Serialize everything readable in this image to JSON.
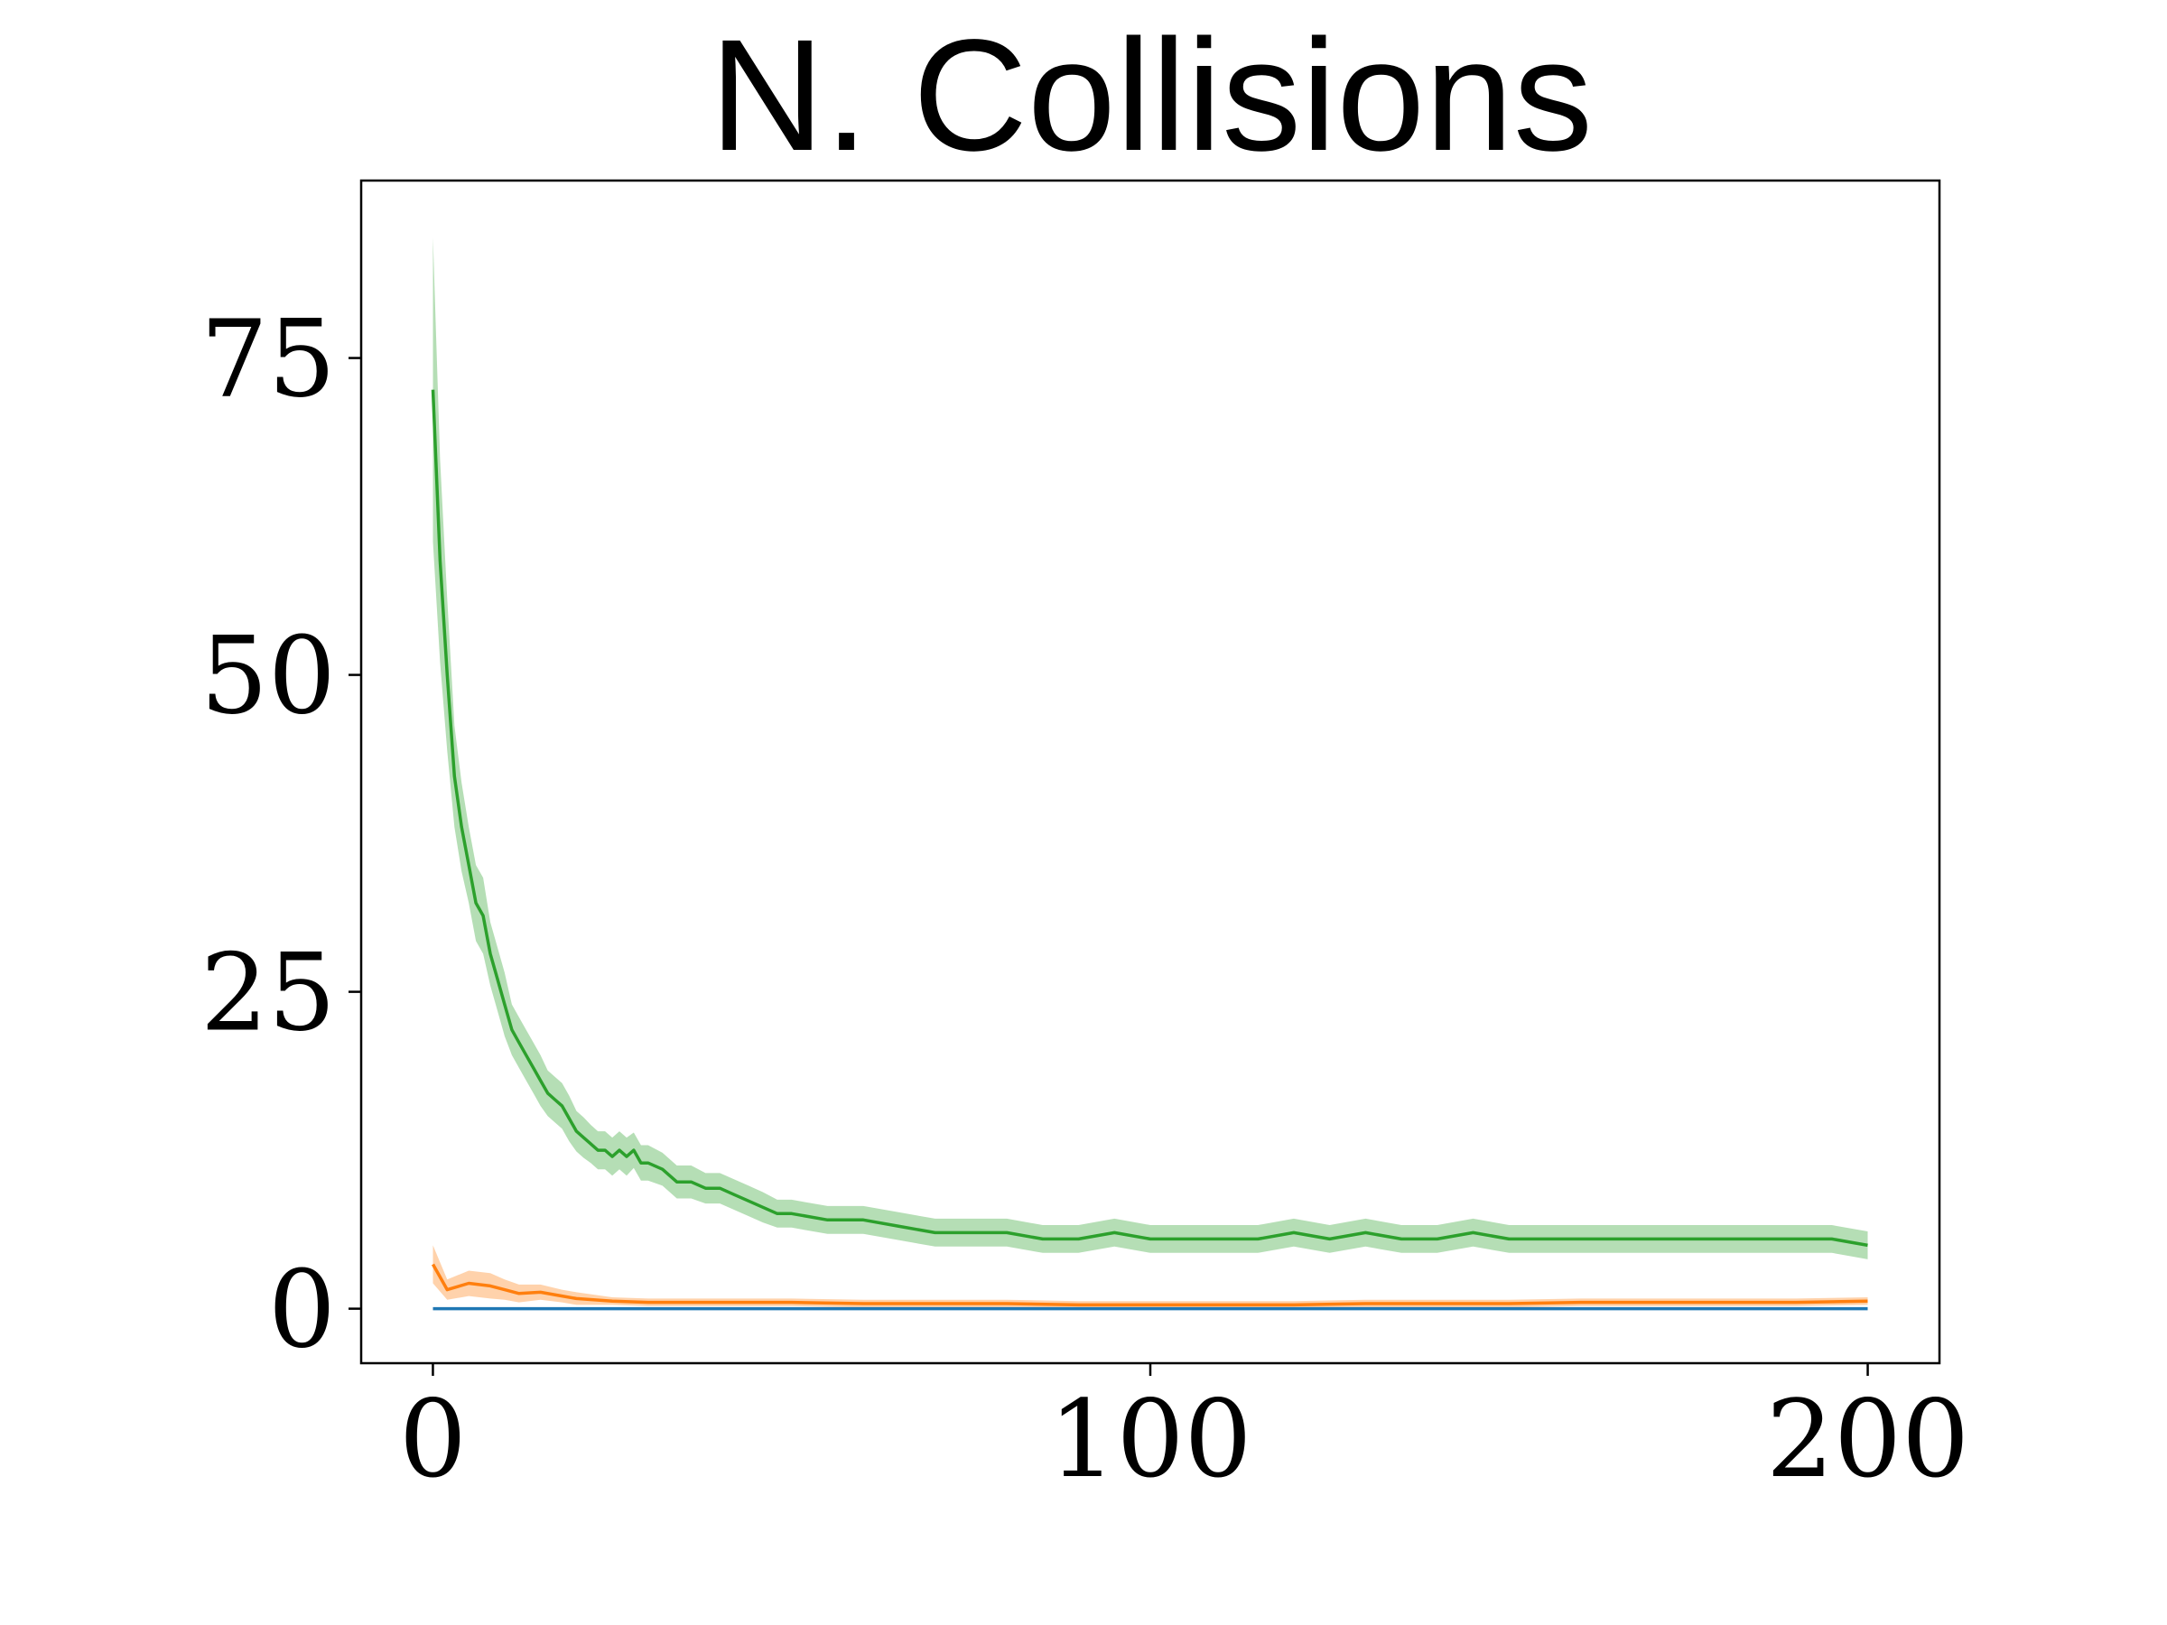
{
  "chart_data": {
    "type": "line",
    "title": "N. Collisions",
    "xlabel": "",
    "ylabel": "",
    "xlim": [
      -10,
      210
    ],
    "ylim": [
      -4.3,
      89
    ],
    "xticks": [
      0,
      100,
      200
    ],
    "xtick_labels": [
      "0",
      "100",
      "200"
    ],
    "yticks": [
      0,
      25,
      50,
      75
    ],
    "ytick_labels": [
      "0",
      "25",
      "50",
      "75"
    ],
    "grid": false,
    "legend": "none",
    "series": [
      {
        "color": "#2ca02c",
        "band": true,
        "x": [
          0,
          1,
          2,
          3,
          4,
          5,
          6,
          7,
          8,
          9,
          10,
          11,
          12,
          13,
          14,
          15,
          16,
          17,
          18,
          19,
          20,
          21,
          22,
          23,
          24,
          25,
          26,
          27,
          28,
          29,
          30,
          32,
          34,
          36,
          38,
          40,
          42,
          44,
          46,
          48,
          50,
          55,
          60,
          65,
          70,
          75,
          80,
          85,
          90,
          95,
          100,
          105,
          110,
          115,
          120,
          125,
          130,
          135,
          140,
          145,
          150,
          155,
          160,
          165,
          170,
          175,
          180,
          185,
          190,
          195,
          200
        ],
        "values": [
          72.5,
          59,
          50,
          42,
          38,
          35,
          32,
          31,
          28,
          26,
          24,
          22,
          21,
          20,
          19,
          18,
          17,
          16.5,
          16,
          15,
          14,
          13.5,
          13,
          12.5,
          12.5,
          12,
          12.5,
          12,
          12.5,
          11.5,
          11.5,
          11,
          10,
          10,
          9.5,
          9.5,
          9,
          8.5,
          8,
          7.5,
          7.5,
          7,
          7,
          6.5,
          6,
          6,
          6,
          5.5,
          5.5,
          6,
          5.5,
          5.5,
          5.5,
          5.5,
          6,
          5.5,
          6,
          5.5,
          5.5,
          6,
          5.5,
          5.5,
          5.5,
          5.5,
          5.5,
          5.5,
          5.5,
          5.5,
          5.5,
          5.5,
          5
        ],
        "spread": [
          12,
          8,
          6,
          4,
          3.5,
          3,
          3,
          3,
          2.5,
          2.5,
          2.5,
          2,
          2,
          2,
          2,
          2,
          1.8,
          1.8,
          1.8,
          1.8,
          1.6,
          1.6,
          1.5,
          1.5,
          1.5,
          1.5,
          1.5,
          1.5,
          1.4,
          1.4,
          1.4,
          1.3,
          1.3,
          1.3,
          1.2,
          1.2,
          1.2,
          1.2,
          1.2,
          1.1,
          1.1,
          1.1,
          1.1,
          1.1,
          1.1,
          1.1,
          1.1,
          1.1,
          1.1,
          1.1,
          1.1,
          1.1,
          1.1,
          1.1,
          1.1,
          1.1,
          1.1,
          1.1,
          1.1,
          1.1,
          1.1,
          1.1,
          1.1,
          1.1,
          1.1,
          1.1,
          1.1,
          1.1,
          1.1,
          1.1,
          1.1
        ]
      },
      {
        "color": "#ff7f0e",
        "band": true,
        "x": [
          0,
          2,
          5,
          8,
          10,
          12,
          15,
          18,
          20,
          25,
          30,
          40,
          50,
          60,
          70,
          80,
          90,
          100,
          110,
          120,
          130,
          140,
          150,
          160,
          170,
          180,
          190,
          200
        ],
        "values": [
          3.5,
          1.5,
          2,
          1.8,
          1.5,
          1.2,
          1.3,
          1,
          0.8,
          0.6,
          0.5,
          0.5,
          0.5,
          0.4,
          0.4,
          0.4,
          0.3,
          0.3,
          0.3,
          0.3,
          0.4,
          0.4,
          0.4,
          0.5,
          0.5,
          0.5,
          0.5,
          0.6
        ],
        "spread": [
          1.5,
          0.8,
          1,
          1,
          0.8,
          0.7,
          0.6,
          0.5,
          0.5,
          0.3,
          0.3,
          0.3,
          0.3,
          0.3,
          0.3,
          0.3,
          0.3,
          0.3,
          0.3,
          0.3,
          0.3,
          0.3,
          0.3,
          0.3,
          0.3,
          0.3,
          0.3,
          0.3
        ]
      },
      {
        "color": "#1f77b4",
        "band": false,
        "x": [
          0,
          200
        ],
        "values": [
          0,
          0
        ]
      }
    ]
  }
}
